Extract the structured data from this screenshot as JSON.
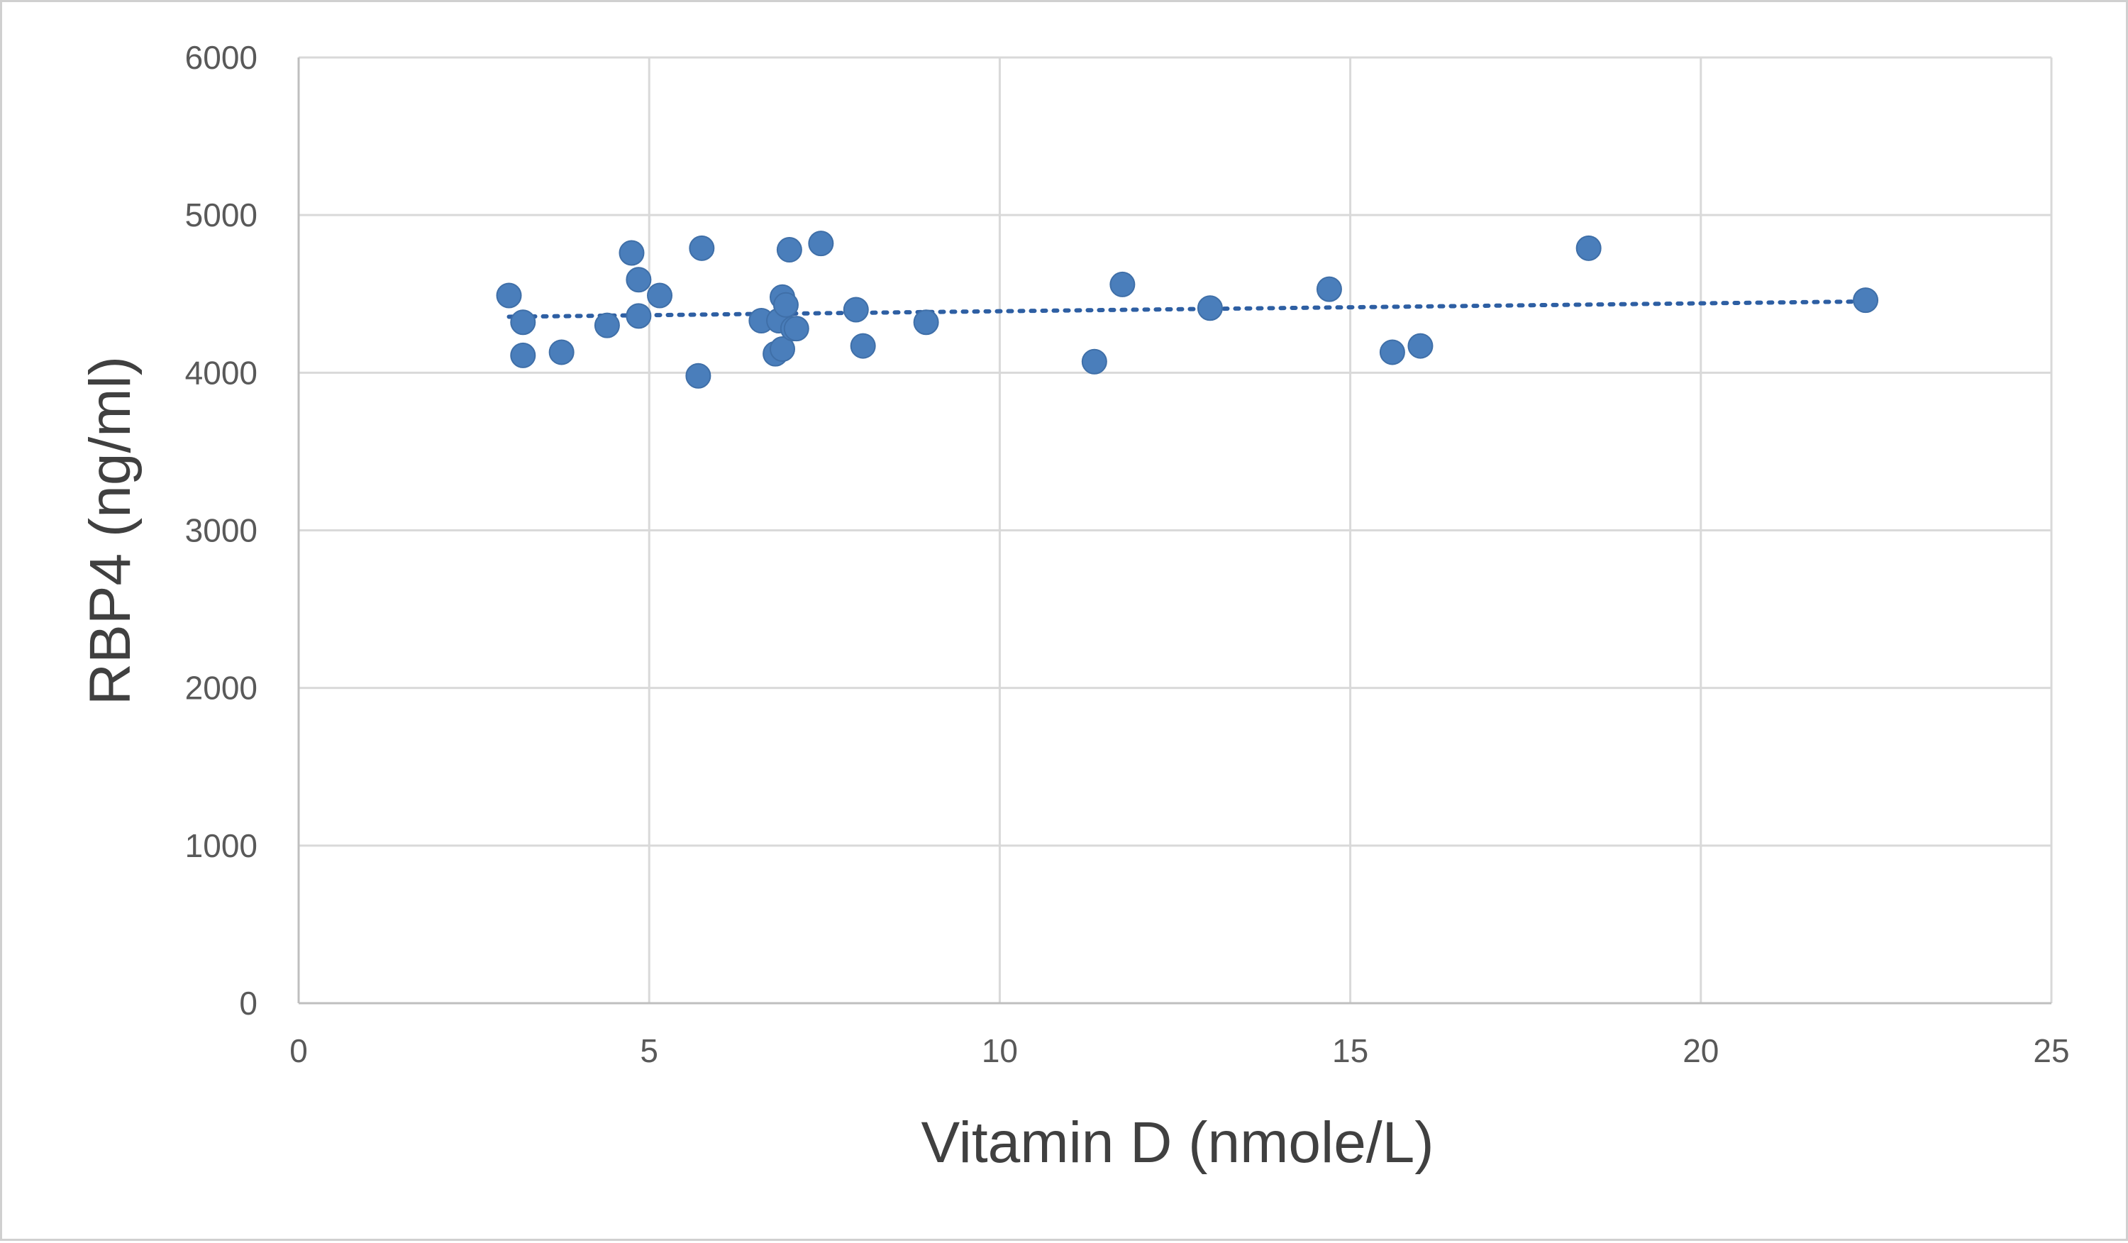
{
  "chart_data": {
    "type": "scatter",
    "title": "",
    "xlabel": "Vitamin D (nmole/L)",
    "ylabel": "RBP4 (ng/ml)",
    "xlim": [
      0,
      25
    ],
    "ylim": [
      0,
      6000
    ],
    "x_ticks": [
      0,
      5,
      10,
      15,
      20,
      25
    ],
    "y_ticks": [
      0,
      1000,
      2000,
      3000,
      4000,
      5000,
      6000
    ],
    "grid": true,
    "legend": "none",
    "colors": {
      "marker": "#4a7ebb",
      "trendline": "#2e5fa3",
      "grid": "#d9d9d9"
    },
    "series": [
      {
        "name": "RBP4",
        "x": [
          3.0,
          3.2,
          3.2,
          3.75,
          4.4,
          4.75,
          4.85,
          4.85,
          5.15,
          5.7,
          5.75,
          6.6,
          6.8,
          6.85,
          6.9,
          6.9,
          6.95,
          7.0,
          7.05,
          7.1,
          7.45,
          7.95,
          8.05,
          8.95,
          11.35,
          11.75,
          13.0,
          14.7,
          15.6,
          16.0,
          18.4,
          22.35
        ],
        "y": [
          4490,
          4320,
          4110,
          4130,
          4300,
          4760,
          4360,
          4590,
          4490,
          3980,
          4790,
          4330,
          4120,
          4330,
          4480,
          4150,
          4430,
          4780,
          4280,
          4280,
          4820,
          4400,
          4170,
          4320,
          4070,
          4560,
          4410,
          4530,
          4130,
          4170,
          4790,
          4460
        ]
      }
    ],
    "trendline": {
      "type": "linear",
      "x": [
        3.0,
        22.35
      ],
      "y": [
        4355,
        4452
      ]
    }
  }
}
